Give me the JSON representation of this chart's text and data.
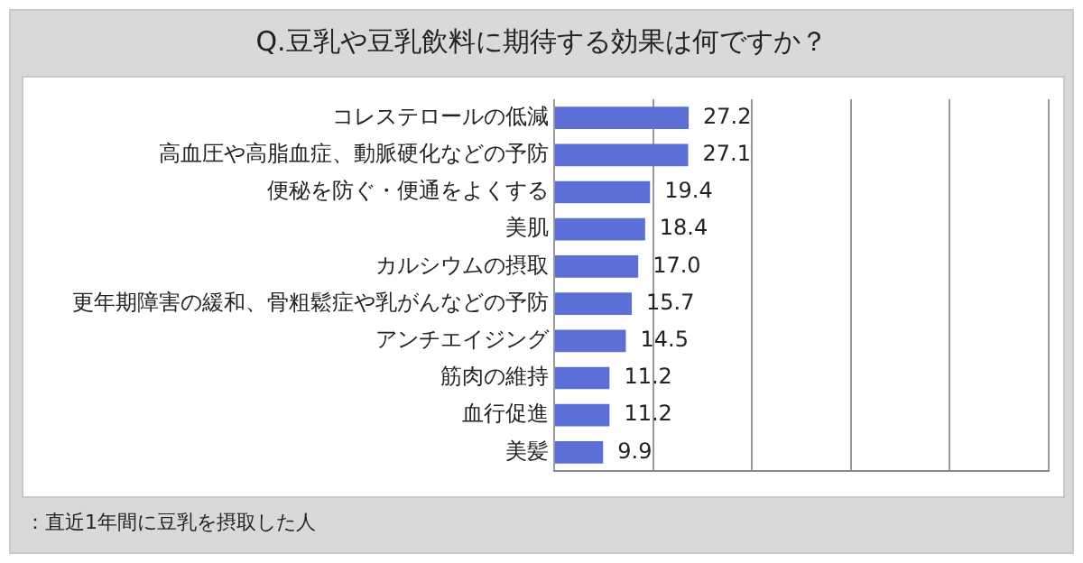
{
  "chart_data": {
    "type": "bar",
    "orientation": "horizontal",
    "title": "Q.豆乳や豆乳飲料に期待する効果は何ですか？",
    "categories": [
      "コレステロールの低減",
      "高血圧や高脂血症、動脈硬化などの予防",
      "便秘を防ぐ・便通をよくする",
      "美肌",
      "カルシウムの摂取",
      "更年期障害の緩和、骨粗鬆症や乳がんなどの予防",
      "アンチエイジング",
      "筋肉の維持",
      "血行促進",
      "美髪"
    ],
    "values": [
      27.2,
      27.1,
      19.4,
      18.4,
      17.0,
      15.7,
      14.5,
      11.2,
      11.2,
      9.9
    ],
    "color": "#5b6fd6",
    "value_labels": [
      "27.2",
      "27.1",
      "19.4",
      "18.4",
      "17.0",
      "15.7",
      "14.5",
      "11.2",
      "11.2",
      "9.9"
    ],
    "xlim": [
      0,
      100
    ],
    "xticks": [
      {
        "value": 0,
        "label": null
      },
      {
        "value": 20,
        "label": null
      },
      {
        "value": 40,
        "label": null
      },
      {
        "value": 60,
        "label": null
      },
      {
        "value": 80,
        "label": null
      },
      {
        "value": 100,
        "label": null
      }
    ],
    "grid": "x",
    "tick_labels": "y",
    "annotations": [
      "：直近1年間に豆乳を摂取した人"
    ]
  }
}
